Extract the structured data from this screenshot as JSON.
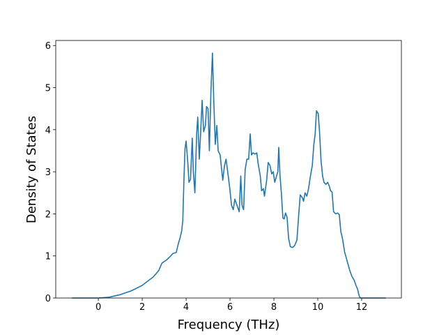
{
  "chart_data": {
    "type": "line",
    "xlabel": "Frequency (THz)",
    "ylabel": "Density of States",
    "x": [
      -1.2,
      0,
      0.5,
      1,
      1.5,
      2,
      2.5,
      2.75,
      2.9,
      3.1,
      3.3,
      3.4,
      3.55,
      3.65,
      3.72,
      3.8,
      3.85,
      3.9,
      3.95,
      4.0,
      4.08,
      4.13,
      4.2,
      4.28,
      4.33,
      4.4,
      4.48,
      4.53,
      4.6,
      4.66,
      4.73,
      4.8,
      4.88,
      4.93,
      5.0,
      5.06,
      5.13,
      5.2,
      5.26,
      5.33,
      5.4,
      5.46,
      5.55,
      5.67,
      5.75,
      5.82,
      5.92,
      5.99,
      6.07,
      6.15,
      6.22,
      6.32,
      6.42,
      6.49,
      6.55,
      6.62,
      6.69,
      6.77,
      6.85,
      6.92,
      6.98,
      7.05,
      7.14,
      7.22,
      7.28,
      7.38,
      7.44,
      7.52,
      7.57,
      7.67,
      7.74,
      7.82,
      7.9,
      7.97,
      8.04,
      8.12,
      8.18,
      8.22,
      8.28,
      8.34,
      8.41,
      8.47,
      8.53,
      8.6,
      8.67,
      8.75,
      8.85,
      8.95,
      9.05,
      9.12,
      9.2,
      9.3,
      9.35,
      9.42,
      9.5,
      9.58,
      9.65,
      9.75,
      9.82,
      9.88,
      9.94,
      10.02,
      10.08,
      10.15,
      10.22,
      10.28,
      10.37,
      10.45,
      10.53,
      10.58,
      10.65,
      10.72,
      10.82,
      10.9,
      10.98,
      11.05,
      11.13,
      11.22,
      11.3,
      11.38,
      11.46,
      11.55,
      11.66,
      11.74,
      11.82,
      11.86,
      11.91,
      11.95,
      13.1
    ],
    "series": [
      {
        "color": "#1f77b4",
        "values": [
          0,
          0,
          0.02,
          0.08,
          0.17,
          0.3,
          0.5,
          0.65,
          0.83,
          0.9,
          1.0,
          1.06,
          1.08,
          1.3,
          1.42,
          1.6,
          1.85,
          2.8,
          3.55,
          3.73,
          3.2,
          2.75,
          2.82,
          3.8,
          3.0,
          2.5,
          3.9,
          4.3,
          3.3,
          3.9,
          4.7,
          3.95,
          4.1,
          4.55,
          4.5,
          3.5,
          4.9,
          5.82,
          4.7,
          3.65,
          4.1,
          3.5,
          3.4,
          2.8,
          3.15,
          3.3,
          2.9,
          2.6,
          2.2,
          2.1,
          2.35,
          2.2,
          2.05,
          2.9,
          2.2,
          2.1,
          3.05,
          3.3,
          3.3,
          3.9,
          3.4,
          3.45,
          3.42,
          3.45,
          3.2,
          2.9,
          2.55,
          2.6,
          2.42,
          2.8,
          3.22,
          3.15,
          2.95,
          3.0,
          2.75,
          2.9,
          3.0,
          3.58,
          2.9,
          2.5,
          1.9,
          1.88,
          2.02,
          1.92,
          1.42,
          1.22,
          1.2,
          1.25,
          1.38,
          1.9,
          2.45,
          2.38,
          2.3,
          2.5,
          2.42,
          2.6,
          2.85,
          3.15,
          3.65,
          3.9,
          4.45,
          4.38,
          3.95,
          3.25,
          2.9,
          2.75,
          2.7,
          2.75,
          2.65,
          2.55,
          2.52,
          2.05,
          2.0,
          2.02,
          1.98,
          1.58,
          1.4,
          1.1,
          0.95,
          0.8,
          0.65,
          0.52,
          0.42,
          0.3,
          0.2,
          0.1,
          0.02,
          0,
          0
        ]
      }
    ],
    "xlim": [
      -1.94,
      13.81
    ],
    "ylim": [
      0,
      6.12
    ],
    "xticks": [
      0,
      2,
      4,
      6,
      8,
      10,
      12
    ],
    "yticks": [
      0,
      1,
      2,
      3,
      4,
      5,
      6
    ]
  }
}
